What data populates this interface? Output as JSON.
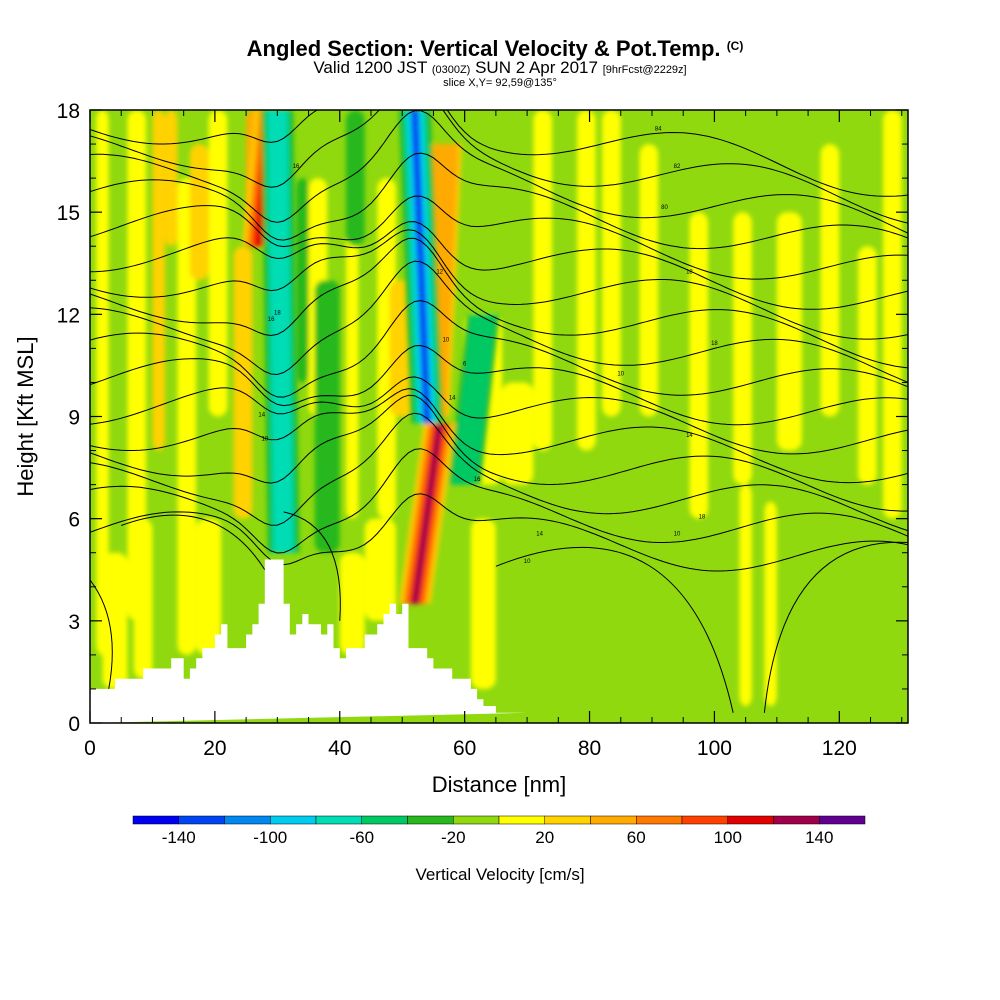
{
  "title": {
    "main": "Angled Section: Vertical Velocity & Pot.Temp.",
    "main_units": "(C)",
    "valid_prefix": "Valid 1200 JST",
    "valid_utc": "(0300Z)",
    "valid_date": "SUN 2 Apr 2017",
    "forecast": "[9hrFcst@2229z]",
    "slice": "slice X,Y= 92,59@135°"
  },
  "colors": {
    "background_field": "#8fd90e",
    "terrain": "#ffffff",
    "contour": "#000000"
  },
  "chart_data": {
    "type": "heatmap",
    "xlabel": "Distance [nm]",
    "ylabel": "Height [Kft MSL]",
    "xlim": [
      0,
      131
    ],
    "ylim": [
      0,
      18
    ],
    "x_ticks": [
      "0",
      "20",
      "40",
      "60",
      "80",
      "100",
      "120"
    ],
    "y_ticks": [
      "0",
      "3",
      "6",
      "9",
      "12",
      "15",
      "18"
    ],
    "colorbar": {
      "label": "Vertical Velocity [cm/s]",
      "range": [
        -160,
        160
      ],
      "bins": [
        {
          "from": -160,
          "to": -140,
          "color": "#0000f0"
        },
        {
          "from": -140,
          "to": -120,
          "color": "#0044f2"
        },
        {
          "from": -120,
          "to": -100,
          "color": "#0088f0"
        },
        {
          "from": -100,
          "to": -80,
          "color": "#00ccf0"
        },
        {
          "from": -80,
          "to": -60,
          "color": "#00dcb4"
        },
        {
          "from": -60,
          "to": -40,
          "color": "#00c864"
        },
        {
          "from": -40,
          "to": -20,
          "color": "#28b81e"
        },
        {
          "from": -20,
          "to": 0,
          "color": "#8fd90e"
        },
        {
          "from": 0,
          "to": 20,
          "color": "#ffff00"
        },
        {
          "from": 20,
          "to": 40,
          "color": "#ffd200"
        },
        {
          "from": 40,
          "to": 60,
          "color": "#ffaa00"
        },
        {
          "from": 60,
          "to": 80,
          "color": "#ff7800"
        },
        {
          "from": 80,
          "to": 100,
          "color": "#ff4000"
        },
        {
          "from": 100,
          "to": 120,
          "color": "#e00000"
        },
        {
          "from": 120,
          "to": 140,
          "color": "#a0004a"
        },
        {
          "from": 140,
          "to": 160,
          "color": "#600090"
        }
      ],
      "tick_labels": [
        "-140",
        "-100",
        "-60",
        "-20",
        "20",
        "60",
        "100",
        "140"
      ],
      "tick_values": [
        -140,
        -100,
        -60,
        -20,
        20,
        60,
        100,
        140
      ]
    },
    "features": [
      {
        "name": "updraft",
        "w": 130,
        "x_bottom": 52,
        "x_top": 56,
        "y_from": 3.5,
        "y_to": 8.8
      },
      {
        "name": "updraft",
        "w": 110,
        "x_bottom": 27,
        "x_top": 29,
        "y_from": 14,
        "y_to": 18
      },
      {
        "name": "updraft",
        "w": 60,
        "x_bottom": 55,
        "x_top": 57,
        "y_from": 9,
        "y_to": 17
      },
      {
        "name": "downdraft",
        "w": -140,
        "x_bottom": 54,
        "x_top": 52,
        "y_from": 8.8,
        "y_to": 18
      },
      {
        "name": "downdraft",
        "w": -80,
        "x_bottom": 31,
        "x_top": 30,
        "y_from": 5,
        "y_to": 18
      },
      {
        "name": "downdraft",
        "w": -50,
        "x_bottom": 60,
        "x_top": 63,
        "y_from": 7,
        "y_to": 12
      }
    ],
    "contour_labels": [
      "16",
      "18",
      "16",
      "14",
      "10",
      "6",
      "12",
      "10",
      "14",
      "16",
      "14",
      "10",
      "10",
      "84",
      "82",
      "80",
      "18",
      "18",
      "14",
      "18",
      "10"
    ],
    "terrain_profile": {
      "x": [
        0,
        4,
        4,
        8.5,
        8.5,
        13,
        13,
        15,
        15,
        16,
        16,
        17,
        17,
        18,
        18,
        20,
        20,
        21,
        21,
        22,
        22,
        25,
        25,
        26,
        26,
        27,
        27,
        28,
        28,
        31,
        31,
        32,
        32,
        33,
        33,
        34,
        34,
        35,
        35,
        37,
        37,
        38,
        38,
        39,
        39,
        40,
        40,
        41,
        41,
        44,
        44,
        46,
        46,
        47,
        47,
        48,
        48,
        49,
        49,
        50,
        50,
        51,
        51,
        54,
        54,
        55,
        55,
        58,
        58,
        61,
        61,
        62,
        62,
        63,
        63,
        65,
        65,
        67,
        67,
        70,
        70,
        131
      ],
      "y": [
        1,
        1,
        1.3,
        1.3,
        1.6,
        1.6,
        1.9,
        1.9,
        1.3,
        1.3,
        1.6,
        1.6,
        1.9,
        1.9,
        2.2,
        2.2,
        2.6,
        2.6,
        2.9,
        2.9,
        2.2,
        2.2,
        2.6,
        2.6,
        2.9,
        2.9,
        3.5,
        3.5,
        4.8,
        4.8,
        3.5,
        3.5,
        2.6,
        2.6,
        2.9,
        2.9,
        3.2,
        3.2,
        2.9,
        2.9,
        2.6,
        2.6,
        2.9,
        2.9,
        2.2,
        2.2,
        1.9,
        1.9,
        2.2,
        2.2,
        2.6,
        2.6,
        2.9,
        2.9,
        3.2,
        3.2,
        3.5,
        3.5,
        3.2,
        3.2,
        3.5,
        3.5,
        2.2,
        2.2,
        1.9,
        1.9,
        1.6,
        1.6,
        1.3,
        1.3,
        1.0,
        1.0,
        0.7,
        0.7,
        0.5,
        0.5,
        0.3,
        0.3,
        0.3,
        0.3
      ]
    }
  }
}
